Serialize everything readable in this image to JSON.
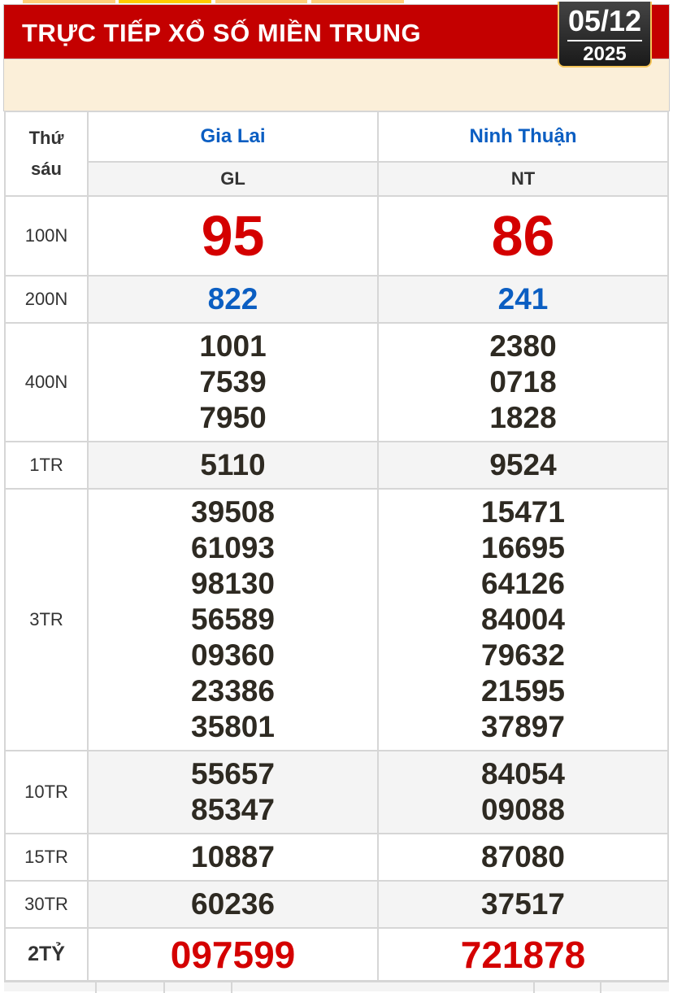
{
  "header": {
    "title": "TRỰC TIẾP XỔ SỐ MIỀN TRUNG",
    "date": "05/12",
    "year": "2025"
  },
  "colors": {
    "header_bg": "#c40000",
    "jackpot": "#d40000",
    "province": "#0b5ec2"
  },
  "table": {
    "day_label": "Thứ sáu",
    "provinces": [
      {
        "name": "Gia Lai",
        "code": "GL"
      },
      {
        "name": "Ninh Thuận",
        "code": "NT"
      }
    ],
    "prizes": [
      {
        "label": "100N",
        "values": [
          [
            "95"
          ],
          [
            "86"
          ]
        ]
      },
      {
        "label": "200N",
        "values": [
          [
            "822"
          ],
          [
            "241"
          ]
        ]
      },
      {
        "label": "400N",
        "values": [
          [
            "1001",
            "7539",
            "7950"
          ],
          [
            "2380",
            "0718",
            "1828"
          ]
        ]
      },
      {
        "label": "1TR",
        "values": [
          [
            "5110"
          ],
          [
            "9524"
          ]
        ]
      },
      {
        "label": "3TR",
        "values": [
          [
            "39508",
            "61093",
            "98130",
            "56589",
            "09360",
            "23386",
            "35801"
          ],
          [
            "15471",
            "16695",
            "64126",
            "84004",
            "79632",
            "21595",
            "37897"
          ]
        ]
      },
      {
        "label": "10TR",
        "values": [
          [
            "55657",
            "85347"
          ],
          [
            "84054",
            "09088"
          ]
        ]
      },
      {
        "label": "15TR",
        "values": [
          [
            "10887"
          ],
          [
            "87080"
          ]
        ]
      },
      {
        "label": "30TR",
        "values": [
          [
            "60236"
          ],
          [
            "37517"
          ]
        ]
      },
      {
        "label": "2TỶ",
        "values": [
          [
            "097599"
          ],
          [
            "721878"
          ]
        ]
      }
    ]
  }
}
